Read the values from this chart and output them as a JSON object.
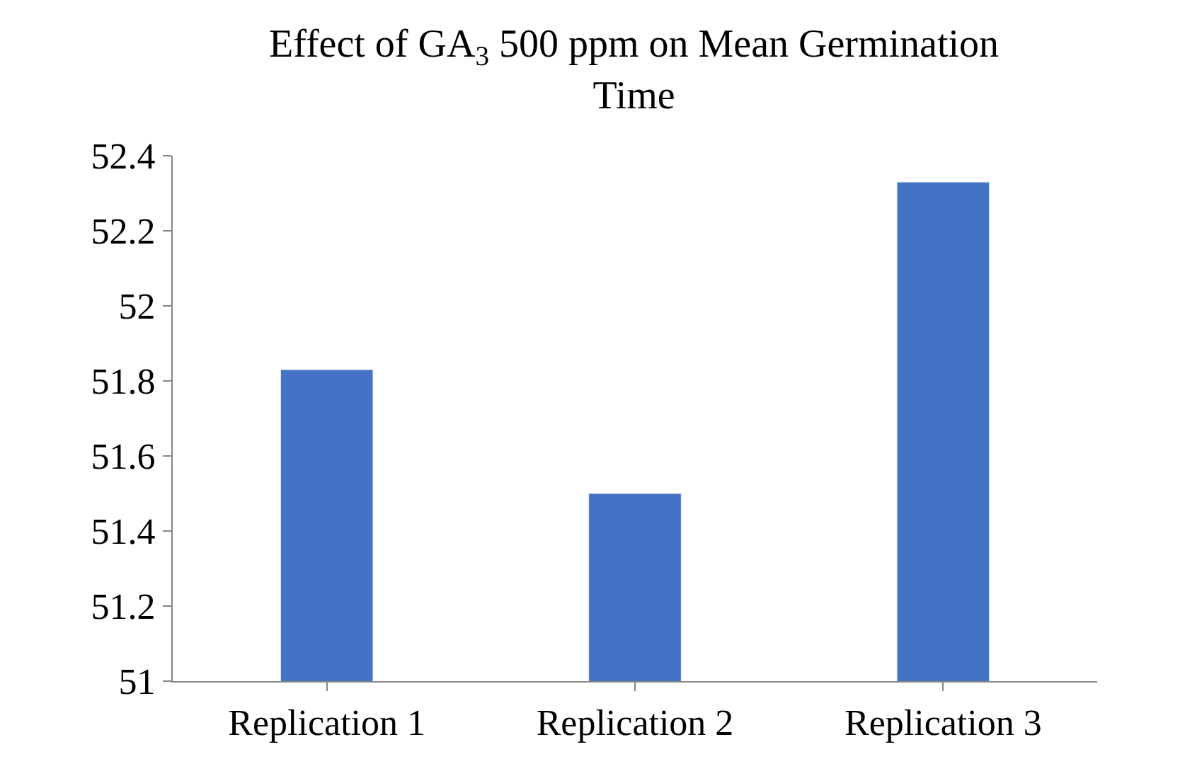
{
  "chart_data": {
    "type": "bar",
    "title": "Effect of GA$_{3}$ 500 ppm on Mean Germination Time",
    "categories": [
      "Replication 1",
      "Replication 2",
      "Replication 3"
    ],
    "series": [
      {
        "color": "#4472c4",
        "values": [
          51.83,
          51.5,
          52.33
        ]
      }
    ],
    "ylim": [
      51,
      52.4
    ],
    "yticks": [
      51,
      51.2,
      51.4,
      51.6,
      51.8,
      52,
      52.2,
      52.4
    ]
  }
}
